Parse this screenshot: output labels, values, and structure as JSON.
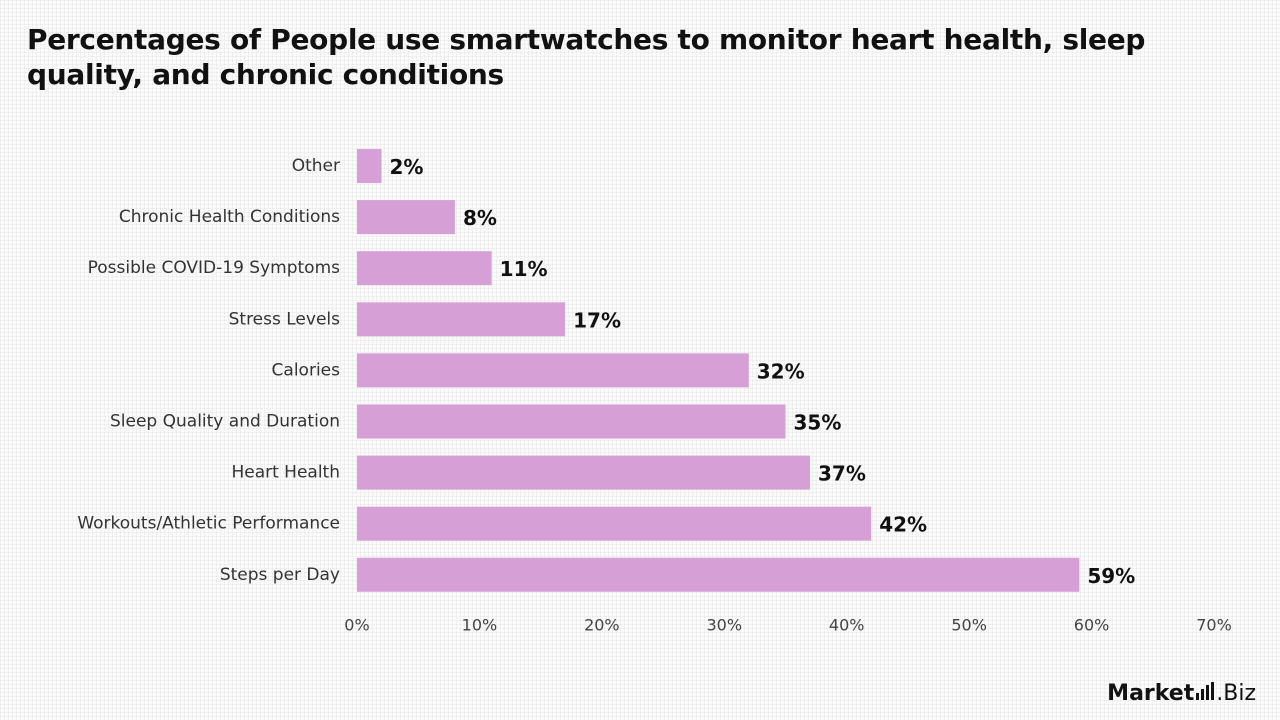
{
  "chart_data": {
    "type": "bar",
    "orientation": "horizontal",
    "title": "Percentages of People use smartwatches to monitor heart health, sleep quality, and chronic conditions",
    "categories": [
      "Other",
      "Chronic Health Conditions",
      "Possible COVID-19 Symptoms",
      "Stress Levels",
      "Calories",
      "Sleep Quality and Duration",
      "Heart Health",
      "Workouts/Athletic Performance",
      "Steps per Day"
    ],
    "values": [
      2,
      8,
      11,
      17,
      32,
      35,
      37,
      42,
      59
    ],
    "value_labels": [
      "2%",
      "8%",
      "11%",
      "17%",
      "32%",
      "35%",
      "37%",
      "42%",
      "59%"
    ],
    "xlim": [
      0,
      70
    ],
    "x_ticks": [
      0,
      10,
      20,
      30,
      40,
      50,
      60,
      70
    ],
    "x_tick_labels": [
      "0%",
      "10%",
      "20%",
      "30%",
      "40%",
      "50%",
      "60%",
      "70%"
    ],
    "bar_color": "#d6a0d6",
    "grid": false,
    "legend": "none"
  },
  "logo": {
    "strong": "Market",
    "light": ".Biz"
  }
}
